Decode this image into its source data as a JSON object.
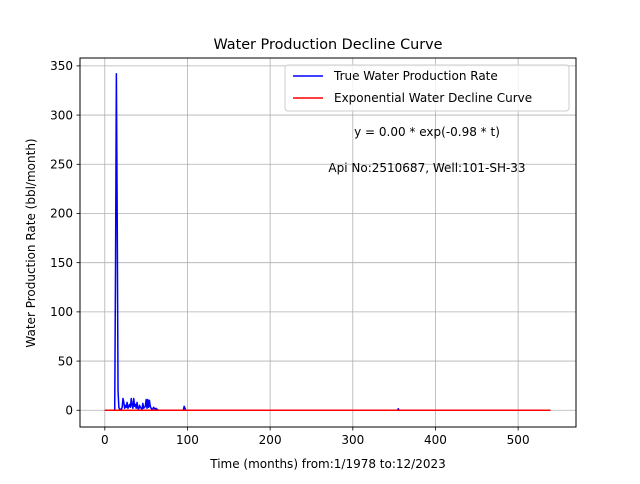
{
  "chart_data": {
    "type": "line",
    "title": "Water Production Decline Curve",
    "xlabel": "Time (months) from:1/1978 to:12/2023",
    "ylabel": "Water Production Rate (bbl/month)",
    "xlim": [
      -30,
      570
    ],
    "ylim": [
      -17,
      358
    ],
    "xticks": [
      0,
      100,
      200,
      300,
      400,
      500
    ],
    "yticks": [
      0,
      50,
      100,
      150,
      200,
      250,
      300,
      350
    ],
    "grid": true,
    "legend_position": "top-right",
    "annotations": [
      "y = 0.00 * exp(-0.98 * t)",
      "Api No:2510687, Well:101-SH-33"
    ],
    "colors": {
      "true_series": "#0000ff",
      "fit_series": "#ff0000",
      "grid": "#b0b0b0"
    },
    "series": [
      {
        "name": "True Water Production Rate",
        "x": [
          0,
          11,
          12,
          13,
          14,
          15,
          16,
          17,
          18,
          19,
          20,
          21,
          22,
          23,
          24,
          25,
          26,
          27,
          28,
          29,
          30,
          31,
          32,
          33,
          34,
          35,
          36,
          37,
          38,
          39,
          40,
          41,
          42,
          43,
          44,
          45,
          46,
          47,
          48,
          49,
          50,
          51,
          52,
          53,
          54,
          55,
          56,
          57,
          58,
          59,
          60,
          61,
          62,
          63,
          64,
          65,
          80,
          95,
          96,
          97,
          98,
          200,
          300,
          350,
          354,
          355,
          356,
          360,
          400,
          450,
          500,
          539
        ],
        "y": [
          0,
          0,
          0,
          150,
          342,
          200,
          20,
          3,
          1,
          1,
          1,
          3,
          12,
          8,
          2,
          5,
          3,
          8,
          2,
          4,
          6,
          3,
          12,
          5,
          2,
          12,
          4,
          6,
          2,
          8,
          2,
          1,
          5,
          3,
          2,
          1,
          7,
          2,
          3,
          4,
          11,
          2,
          11,
          3,
          10,
          4,
          2,
          1,
          1,
          3,
          2,
          1,
          2,
          1,
          0.5,
          0,
          0,
          0,
          4,
          2,
          0,
          0,
          0,
          0,
          0,
          1.5,
          0,
          0,
          0,
          0,
          0,
          0
        ]
      },
      {
        "name": "Exponential Water Decline Curve",
        "x": [
          0,
          100,
          200,
          300,
          400,
          500,
          539
        ],
        "y": [
          0,
          0,
          0,
          0,
          0,
          0,
          0
        ]
      }
    ]
  }
}
